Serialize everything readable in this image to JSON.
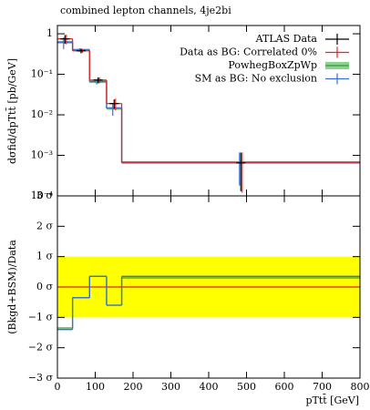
{
  "chart_data": [
    {
      "type": "histogram",
      "title": "combined lepton channels, 4je2bi",
      "ylabel": "dσfid/dpTtt̄ [pb/GeV]",
      "bins": [
        0,
        40,
        85,
        130,
        170,
        800
      ],
      "xlim": [
        0,
        800
      ],
      "ylim": [
        0.0001,
        1.6
      ],
      "log_y": true,
      "yticks": [
        {
          "value": 0.0001,
          "label": "10⁻⁴"
        },
        {
          "value": 0.001,
          "label": "10⁻³"
        },
        {
          "value": 0.01,
          "label": "10⁻²"
        },
        {
          "value": 0.1,
          "label": "10⁻¹"
        },
        1
      ],
      "legend": "upper right",
      "series": [
        {
          "name": "ATLAS Data",
          "color": "#000000",
          "style": "points",
          "values": [
            0.75,
            0.38,
            0.072,
            0.019,
            0.00065
          ],
          "errors": [
            0.18,
            0.05,
            0.012,
            0.005,
            0.00052
          ]
        },
        {
          "name": "Data as BG: Correlated 0%",
          "color": "#e8251f",
          "style": "line",
          "values": [
            0.75,
            0.38,
            0.072,
            0.019,
            0.00065
          ],
          "errors": [
            0.2,
            0.04,
            0.012,
            0.006,
            0.00053
          ]
        },
        {
          "name": "PowhegBoxZpWp",
          "color": "#2e9e3e",
          "band_color": "#8ed08e",
          "style": "band",
          "values": [
            0.62,
            0.4,
            0.066,
            0.0145,
            0.00068
          ],
          "errors": [
            0.05,
            0.03,
            0.005,
            0.0012,
            4e-05
          ]
        },
        {
          "name": "SM as BG: No exclusion",
          "color": "#3a6fd8",
          "style": "line",
          "values": [
            0.62,
            0.4,
            0.066,
            0.0145,
            0.00068
          ],
          "errors": [
            0.2,
            0.04,
            0.01,
            0.005,
            0.0005
          ]
        }
      ]
    },
    {
      "type": "ratio",
      "ylabel": "(Bkgd+BSM)/Data",
      "xlabel": "pTtt̄ [GeV]",
      "xlim": [
        0,
        800
      ],
      "xticks": [
        0,
        100,
        200,
        300,
        400,
        500,
        600,
        700,
        800
      ],
      "ylim": [
        -3,
        3
      ],
      "yticks": [
        {
          "value": -3,
          "label": "−3 σ"
        },
        {
          "value": -2,
          "label": "−2 σ"
        },
        {
          "value": -1,
          "label": "−1 σ"
        },
        {
          "value": 0,
          "label": "0 σ"
        },
        {
          "value": 1,
          "label": "1 σ"
        },
        {
          "value": 2,
          "label": "2 σ"
        },
        {
          "value": 3,
          "label": "3 σ"
        }
      ],
      "band": {
        "range": [
          -1,
          1
        ],
        "color": "#ffff00"
      },
      "series": [
        {
          "color": "#e8251f",
          "values": [
            0,
            0,
            0,
            0,
            0
          ]
        },
        {
          "color": "#2e9e3e",
          "values": [
            -1.35,
            -0.35,
            0.35,
            -0.6,
            0.3
          ]
        },
        {
          "color": "#3a6fd8",
          "values": [
            -1.4,
            -0.35,
            0.35,
            -0.6,
            0.35
          ]
        }
      ]
    }
  ]
}
